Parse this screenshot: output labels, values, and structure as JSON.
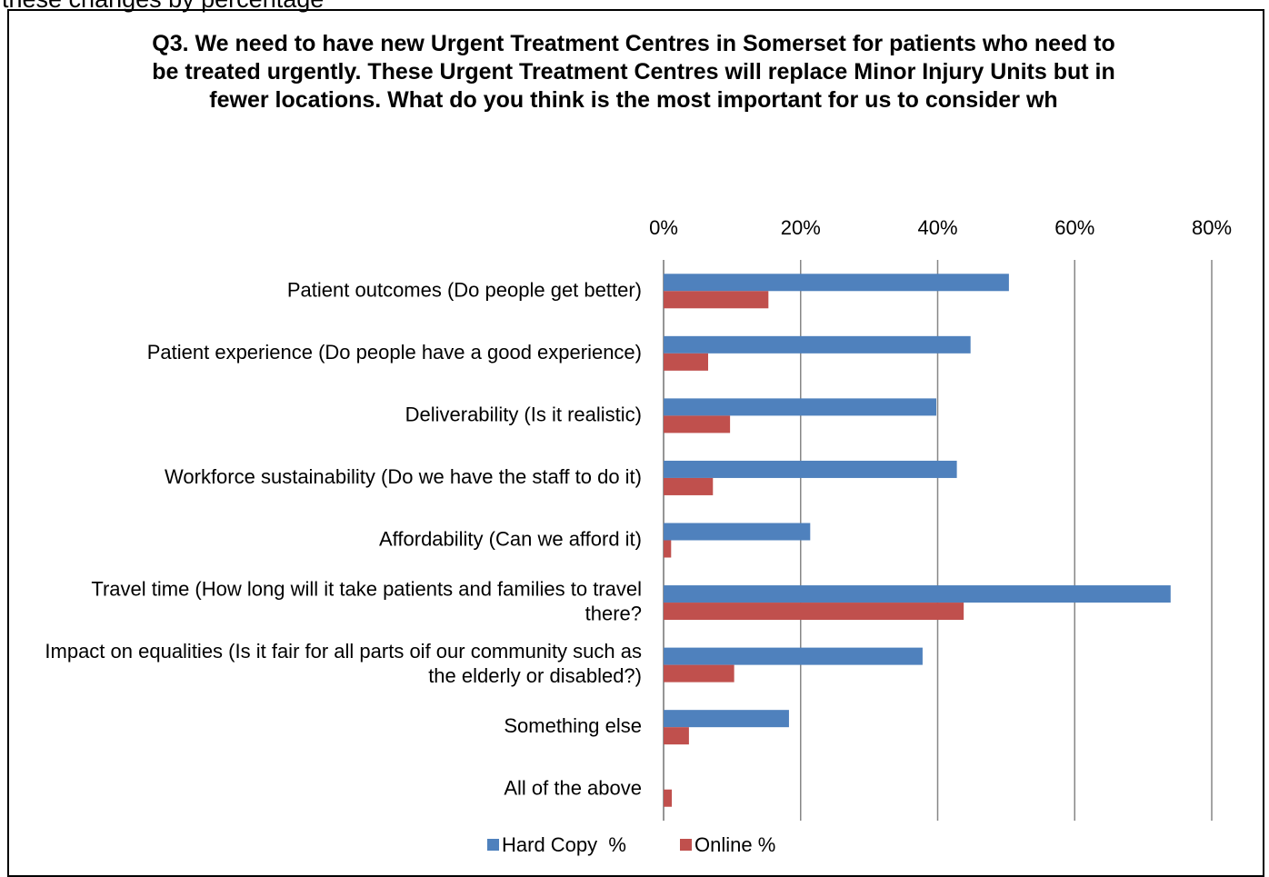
{
  "page_heading": "these changes by percentage",
  "chart_data": {
    "type": "bar",
    "orientation": "horizontal",
    "title": "Q3. We need to have new Urgent Treatment Centres in Somerset for patients who need to be treated urgently. These Urgent Treatment Centres will replace Minor Injury Units but in fewer locations. What do you think is the most important for us to consider wh",
    "categories": [
      "Patient outcomes (Do people get better)",
      "Patient experience (Do people have a good experience)",
      "Deliverability (Is it realistic)",
      "Workforce sustainability (Do we have the staff to do it)",
      "Affordability (Can we afford it)",
      "Travel time (How long will it take patients and families to travel there?",
      "Impact on equalities (Is it fair for all parts oif our community such as the elderly or disabled?)",
      "Something else",
      "All of the above"
    ],
    "series": [
      {
        "name": "Hard Copy  %",
        "color": "#4f81bd",
        "values": [
          50.4,
          44.8,
          39.8,
          42.8,
          21.4,
          74.0,
          37.8,
          18.3,
          0
        ]
      },
      {
        "name": "Online %",
        "color": "#c0504d",
        "values": [
          15.3,
          6.5,
          9.7,
          7.2,
          1.1,
          43.8,
          10.3,
          3.7,
          1.2
        ]
      }
    ],
    "xlim": [
      0,
      80
    ],
    "xticks": [
      {
        "value": 0,
        "label": "0%"
      },
      {
        "value": 20,
        "label": "20%"
      },
      {
        "value": 40,
        "label": "40%"
      },
      {
        "value": 60,
        "label": "60%"
      },
      {
        "value": 80,
        "label": "80%"
      }
    ],
    "grid": true,
    "legend": "bottom"
  }
}
